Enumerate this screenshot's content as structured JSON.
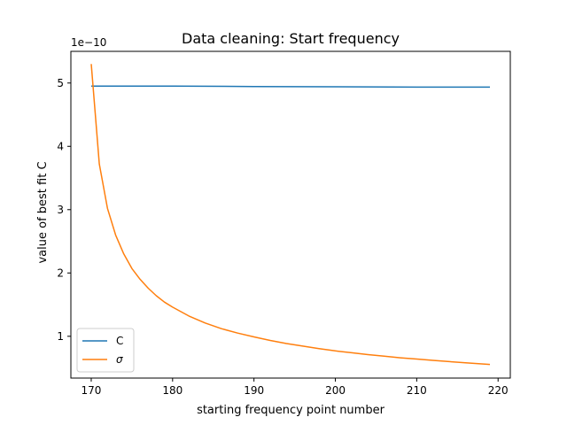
{
  "chart_data": {
    "type": "line",
    "title": "Data cleaning: Start frequency",
    "xlabel": "starting frequency point number",
    "ylabel": "value of best fit C",
    "y_offset_label": "1e−10",
    "xlim": [
      167.5,
      221.5
    ],
    "ylim": [
      0.34,
      5.5
    ],
    "x_ticks": [
      170,
      180,
      190,
      200,
      210,
      220
    ],
    "x_tick_labels": [
      "170",
      "180",
      "190",
      "200",
      "210",
      "220"
    ],
    "y_ticks": [
      1,
      2,
      3,
      4,
      5
    ],
    "y_tick_labels": [
      "1",
      "2",
      "3",
      "4",
      "5"
    ],
    "grid": false,
    "legend_position": "lower-left",
    "series": [
      {
        "name": "C",
        "color": "#1f77b4",
        "x": [
          170,
          180,
          190,
          200,
          210,
          219
        ],
        "y": [
          4.95,
          4.95,
          4.945,
          4.94,
          4.935,
          4.935
        ]
      },
      {
        "name": "σ",
        "color": "#ff7f0e",
        "x": [
          170,
          171,
          172,
          173,
          174,
          175,
          176,
          177,
          178,
          179,
          180,
          182,
          184,
          186,
          188,
          190,
          192,
          194,
          196,
          198,
          200,
          202,
          204,
          206,
          208,
          210,
          212,
          214,
          216,
          219
        ],
        "y": [
          5.3,
          3.72,
          3.02,
          2.6,
          2.3,
          2.07,
          1.9,
          1.76,
          1.64,
          1.54,
          1.46,
          1.32,
          1.21,
          1.12,
          1.05,
          0.99,
          0.935,
          0.885,
          0.845,
          0.805,
          0.77,
          0.74,
          0.71,
          0.685,
          0.66,
          0.64,
          0.62,
          0.6,
          0.58,
          0.555
        ]
      }
    ]
  }
}
